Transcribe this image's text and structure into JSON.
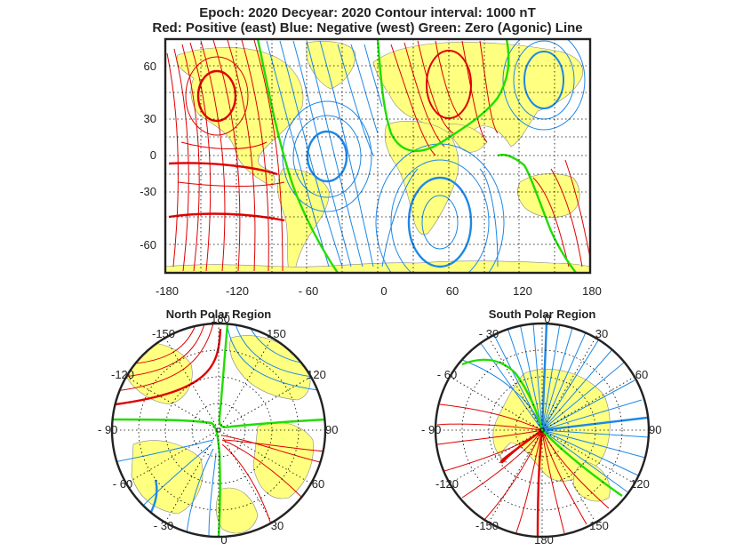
{
  "header": {
    "line1": "Epoch: 2020  Decyear: 2020  Contour interval: 1000 nT",
    "line2": "Red: Positive (east)  Blue: Negative (west)  Green: Zero (Agonic) Line"
  },
  "map": {
    "type": "contour-map",
    "lon_range": [
      -180,
      180
    ],
    "lat_range": [
      -80,
      80
    ],
    "x_ticks": [
      "-180",
      "-120",
      "- 60",
      "0",
      "60",
      "120",
      "180"
    ],
    "y_ticks": [
      "60",
      "30",
      "0",
      "-30",
      "-60"
    ],
    "colors": {
      "positive": "#e00000",
      "negative": "#1e88e5",
      "zero": "#22dd00",
      "land": "#ffff80",
      "frame": "#222222",
      "grid": "#000000"
    }
  },
  "north": {
    "title": "North Polar Region",
    "labels": {
      "top": "180",
      "bottom": "0",
      "left": "- 90",
      "right": "90",
      "tl1": "-150",
      "tl2": "-120",
      "tr1": "150",
      "tr2": "120",
      "bl1": "- 60",
      "bl2": "- 30",
      "br1": "60",
      "br2": "30"
    }
  },
  "south": {
    "title": "South Polar Region",
    "labels": {
      "top": "0",
      "bottom": "180",
      "left": "- 90",
      "right": "90",
      "tl1": "- 30",
      "tl2": "- 60",
      "tr1": "30",
      "tr2": "60",
      "bl1": "-120",
      "bl2": "-150",
      "br1": "120",
      "br2": "150"
    }
  }
}
